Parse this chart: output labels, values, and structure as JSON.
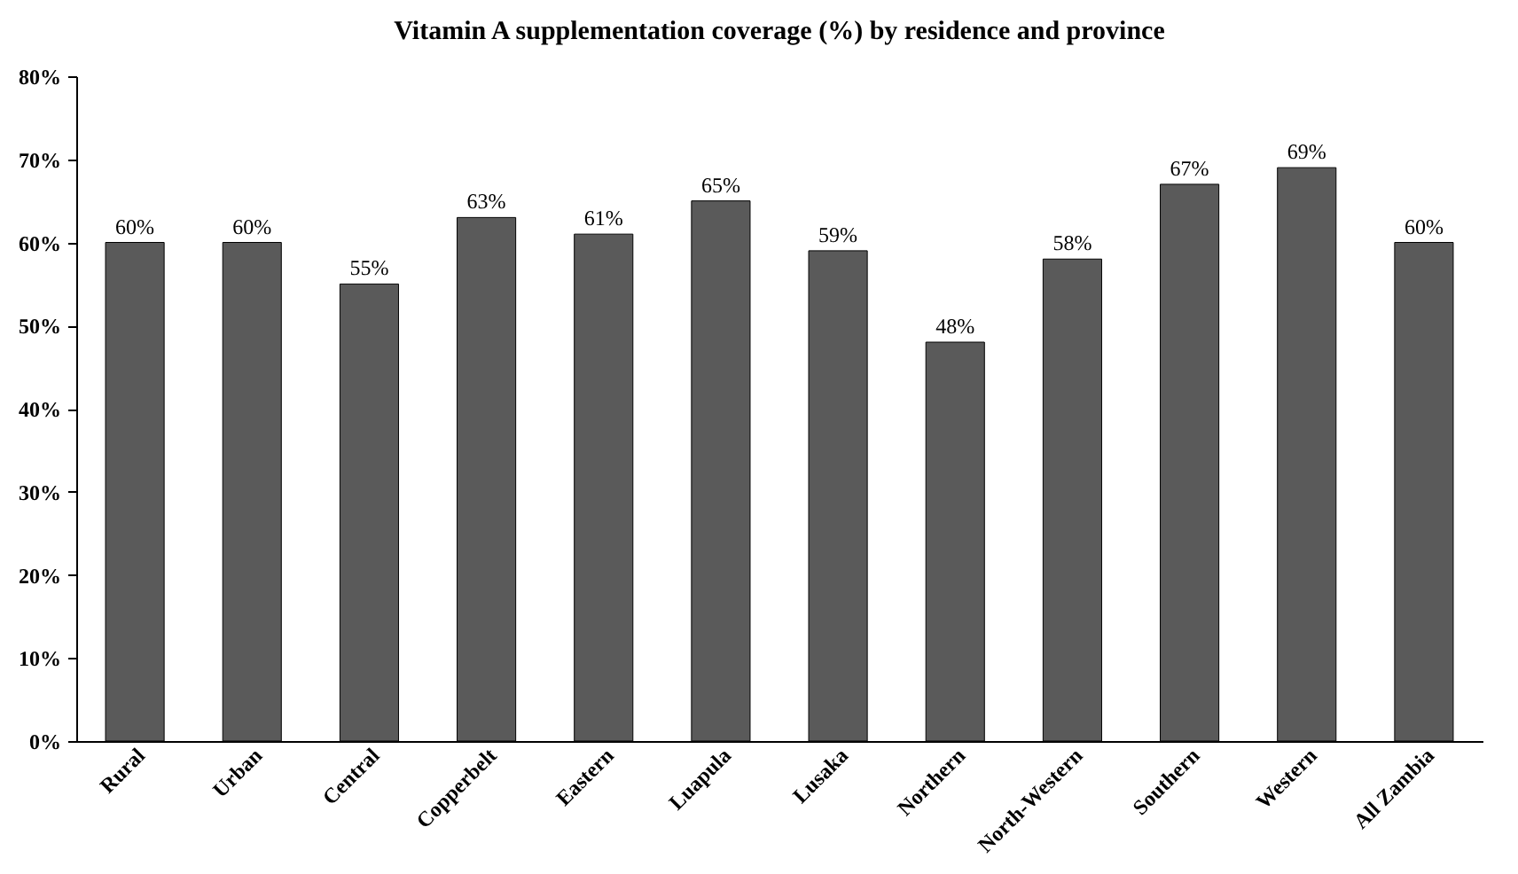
{
  "chart_data": {
    "type": "bar",
    "title": "Vitamin  A supplementation coverage (%) by residence and province",
    "categories": [
      "Rural",
      "Urban",
      "Central",
      "Copperbelt",
      "Eastern",
      "Luapula",
      "Lusaka",
      "Northern",
      "North-Western",
      "Southern",
      "Western",
      "All Zambia"
    ],
    "values": [
      60,
      60,
      55,
      63,
      61,
      65,
      59,
      48,
      58,
      67,
      69,
      60
    ],
    "value_labels": [
      "60%",
      "60%",
      "55%",
      "63%",
      "61%",
      "65%",
      "59%",
      "48%",
      "58%",
      "67%",
      "69%",
      "60%"
    ],
    "color": "#5a5a5a",
    "ylim": [
      0,
      80
    ],
    "yticks": [
      {
        "value": 0,
        "label": "0%"
      },
      {
        "value": 10,
        "label": "10%"
      },
      {
        "value": 20,
        "label": "20%"
      },
      {
        "value": 30,
        "label": "30%"
      },
      {
        "value": 40,
        "label": "40%"
      },
      {
        "value": 50,
        "label": "50%"
      },
      {
        "value": 60,
        "label": "60%"
      },
      {
        "value": 70,
        "label": "70%"
      },
      {
        "value": 80,
        "label": "80%"
      }
    ],
    "grid": false
  }
}
